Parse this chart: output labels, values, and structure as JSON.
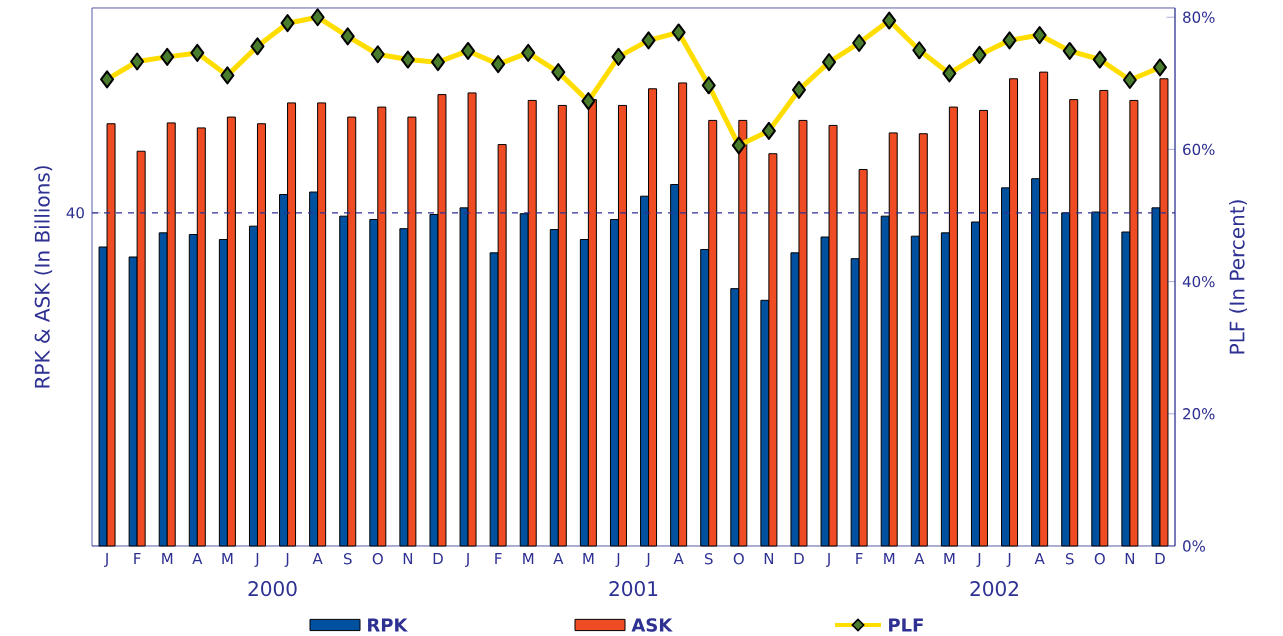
{
  "chart_data": {
    "type": "bar",
    "categories": [
      "J",
      "F",
      "M",
      "A",
      "M",
      "J",
      "J",
      "A",
      "S",
      "O",
      "N",
      "D",
      "J",
      "F",
      "M",
      "A",
      "M",
      "J",
      "J",
      "A",
      "S",
      "O",
      "N",
      "D",
      "J",
      "F",
      "M",
      "A",
      "M",
      "J",
      "J",
      "A",
      "S",
      "O",
      "N",
      "D"
    ],
    "ylabel": "RPK & ASK (In Billions)",
    "y2label": "PLF (In Percent)",
    "ylim": [
      0,
      64.6
    ],
    "yticks": [
      {
        "value": 0,
        "label": null
      },
      40
    ],
    "y2lim": [
      0,
      81.4
    ],
    "y2ticks": [
      {
        "value": 0,
        "label": "0%"
      },
      {
        "value": 20,
        "label": "20%"
      },
      {
        "value": 40,
        "label": "40%"
      },
      {
        "value": 60,
        "label": "60%"
      },
      {
        "value": 80,
        "label": "80%"
      }
    ],
    "series": [
      {
        "name": "RPK",
        "color": "#0050a0",
        "values": [
          35.9,
          34.7,
          37.6,
          37.4,
          36.8,
          38.4,
          42.2,
          42.5,
          39.6,
          39.2,
          38.1,
          39.8,
          40.6,
          35.2,
          39.9,
          38.0,
          36.8,
          39.2,
          42.0,
          43.4,
          35.6,
          30.9,
          29.5,
          35.2,
          37.1,
          34.5,
          39.6,
          37.2,
          37.6,
          38.9,
          43.0,
          44.1,
          40.0,
          40.1,
          37.7,
          40.6
        ]
      },
      {
        "name": "ASK",
        "color": "#f04c23",
        "values": [
          50.7,
          47.4,
          50.8,
          50.2,
          51.5,
          50.7,
          53.2,
          53.2,
          51.5,
          52.7,
          51.5,
          54.2,
          54.4,
          48.2,
          53.5,
          52.9,
          53.6,
          52.9,
          54.9,
          55.6,
          51.1,
          51.1,
          47.1,
          51.1,
          50.5,
          45.2,
          49.6,
          49.5,
          52.7,
          52.3,
          56.1,
          56.9,
          53.6,
          54.7,
          53.5,
          56.1
        ]
      },
      {
        "name": "PLF",
        "type": "line",
        "axis": "y2",
        "color": "#ffdd00",
        "marker": "diamond",
        "values": [
          70.6,
          73.3,
          74.0,
          74.6,
          71.2,
          75.6,
          79.1,
          80.0,
          77.1,
          74.4,
          73.6,
          73.2,
          74.9,
          72.9,
          74.6,
          71.7,
          67.3,
          74.0,
          76.5,
          77.7,
          69.7,
          60.6,
          62.8,
          69.0,
          73.2,
          76.1,
          79.5,
          75.0,
          71.5,
          74.3,
          76.5,
          77.3,
          74.9,
          73.6,
          70.5,
          72.4
        ]
      }
    ],
    "ref_lines": [
      {
        "axis": "y",
        "value": 40,
        "line_style": "dashed",
        "color": "#2e3192"
      }
    ],
    "annotations": [
      "2000",
      "2001",
      "2002"
    ],
    "legend": "bottom",
    "grid": false
  }
}
